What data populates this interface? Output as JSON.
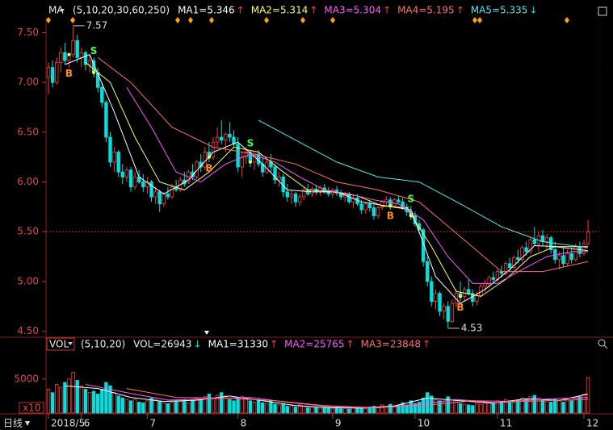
{
  "period": "日线",
  "chart_data": [
    {
      "type": "candlestick",
      "selector": "MA",
      "params": "(5,10,20,30,60,250)",
      "ylim": [
        4.44,
        7.65
      ],
      "yticks": [
        {
          "value": 7.5,
          "label": "7.50"
        },
        {
          "value": 7.0,
          "label": "7.00"
        },
        {
          "value": 6.5,
          "label": "6.50"
        },
        {
          "value": 6.0,
          "label": "6.00"
        },
        {
          "value": 5.5,
          "label": "5.50"
        },
        {
          "value": 5.0,
          "label": "5.00"
        },
        {
          "value": 4.5,
          "label": "4.50"
        }
      ],
      "price_line": 5.5,
      "up_color": "#ff3c3c",
      "down_color": "#00e0e0",
      "xticks": [
        {
          "value": 0,
          "label": "2018/5"
        },
        {
          "value": 8,
          "label": "6"
        },
        {
          "value": 24,
          "label": "7"
        },
        {
          "value": 46,
          "label": "8"
        },
        {
          "value": 69,
          "label": "9"
        },
        {
          "value": 89,
          "label": "10"
        },
        {
          "value": 109,
          "label": "11"
        },
        {
          "value": 130,
          "label": "12"
        }
      ],
      "open": [
        7.05,
        7.15,
        7.0,
        7.2,
        7.3,
        7.22,
        7.28,
        7.42,
        7.25,
        7.3,
        7.18,
        7.22,
        7.1,
        6.95,
        6.8,
        6.45,
        6.2,
        6.3,
        6.1,
        6.05,
        6.12,
        5.95,
        6.05,
        6.0,
        5.95,
        6.0,
        5.85,
        5.9,
        5.78,
        5.88,
        5.85,
        5.95,
        5.92,
        6.02,
        6.0,
        6.1,
        6.05,
        6.2,
        6.15,
        6.3,
        6.25,
        6.4,
        6.45,
        6.42,
        6.48,
        6.45,
        6.38,
        6.15,
        6.25,
        6.3,
        6.2,
        6.28,
        6.18,
        6.1,
        6.2,
        6.15,
        6.02,
        6.05,
        5.9,
        5.85,
        5.88,
        5.8,
        5.85,
        5.92,
        5.88,
        5.93,
        5.9,
        5.94,
        5.91,
        5.88,
        5.92,
        5.89,
        5.85,
        5.88,
        5.8,
        5.84,
        5.78,
        5.72,
        5.78,
        5.74,
        5.66,
        5.74,
        5.8,
        5.82,
        5.76,
        5.82,
        5.8,
        5.75,
        5.7,
        5.66,
        5.58,
        5.52,
        5.2,
        5.0,
        4.8,
        4.88,
        4.7,
        4.75,
        4.6,
        4.78,
        4.88,
        4.85,
        4.92,
        4.88,
        4.8,
        4.86,
        4.95,
        4.98,
        5.04,
        5.02,
        5.1,
        5.08,
        5.18,
        5.14,
        5.24,
        5.22,
        5.34,
        5.3,
        5.42,
        5.38,
        5.46,
        5.4,
        5.44,
        5.32,
        5.22,
        5.26,
        5.18,
        5.28,
        5.22,
        5.35,
        5.28,
        5.38
      ],
      "high": [
        7.2,
        7.22,
        7.25,
        7.35,
        7.4,
        7.3,
        7.57,
        7.48,
        7.35,
        7.32,
        7.28,
        7.25,
        7.15,
        7.0,
        6.82,
        6.5,
        6.35,
        6.32,
        6.18,
        6.15,
        6.15,
        6.1,
        6.12,
        6.08,
        6.05,
        6.02,
        5.95,
        5.92,
        5.9,
        5.95,
        5.98,
        6.02,
        6.05,
        6.1,
        6.12,
        6.18,
        6.22,
        6.28,
        6.35,
        6.4,
        6.45,
        6.55,
        6.62,
        6.5,
        6.6,
        6.52,
        6.45,
        6.3,
        6.35,
        6.32,
        6.3,
        6.32,
        6.25,
        6.22,
        6.28,
        6.18,
        6.1,
        6.08,
        5.98,
        5.92,
        5.9,
        5.88,
        5.95,
        5.98,
        5.95,
        5.97,
        5.96,
        5.98,
        5.95,
        5.94,
        5.96,
        5.92,
        5.9,
        5.9,
        5.86,
        5.88,
        5.82,
        5.8,
        5.82,
        5.78,
        5.76,
        5.82,
        5.86,
        5.85,
        5.84,
        5.86,
        5.84,
        5.78,
        5.76,
        5.7,
        5.62,
        5.54,
        5.25,
        5.05,
        4.92,
        4.9,
        4.78,
        4.8,
        4.82,
        4.92,
        5.0,
        4.95,
        5.02,
        4.92,
        4.9,
        4.98,
        5.02,
        5.06,
        5.1,
        5.12,
        5.16,
        5.2,
        5.24,
        5.26,
        5.32,
        5.36,
        5.4,
        5.44,
        5.55,
        5.5,
        5.52,
        5.48,
        5.46,
        5.4,
        5.3,
        5.34,
        5.32,
        5.34,
        5.38,
        5.4,
        5.42,
        5.62
      ],
      "low": [
        6.88,
        6.95,
        6.98,
        7.1,
        7.18,
        7.15,
        7.25,
        7.2,
        7.15,
        7.12,
        7.1,
        7.05,
        6.9,
        6.75,
        6.4,
        6.15,
        6.1,
        6.05,
        5.98,
        6.0,
        5.9,
        5.92,
        5.98,
        5.9,
        5.88,
        5.8,
        5.78,
        5.7,
        5.75,
        5.82,
        5.83,
        5.9,
        5.9,
        5.95,
        5.98,
        6.02,
        6.03,
        6.1,
        6.12,
        6.2,
        6.22,
        6.35,
        6.38,
        6.3,
        6.4,
        6.35,
        6.1,
        6.05,
        6.18,
        6.15,
        6.12,
        6.15,
        6.05,
        6.08,
        6.1,
        5.98,
        5.95,
        5.85,
        5.8,
        5.78,
        5.75,
        5.76,
        5.82,
        5.86,
        5.85,
        5.87,
        5.86,
        5.88,
        5.85,
        5.84,
        5.86,
        5.82,
        5.8,
        5.78,
        5.74,
        5.76,
        5.68,
        5.68,
        5.7,
        5.62,
        5.63,
        5.72,
        5.76,
        5.72,
        5.74,
        5.78,
        5.72,
        5.66,
        5.62,
        5.55,
        5.48,
        5.15,
        4.95,
        4.75,
        4.72,
        4.65,
        4.62,
        4.53,
        4.58,
        4.74,
        4.8,
        4.8,
        4.86,
        4.75,
        4.76,
        4.84,
        4.9,
        4.94,
        4.98,
        5.0,
        5.04,
        5.06,
        5.1,
        5.12,
        5.18,
        5.2,
        5.26,
        5.28,
        5.36,
        5.3,
        5.36,
        5.32,
        5.28,
        5.18,
        5.12,
        5.14,
        5.15,
        5.18,
        5.2,
        5.24,
        5.26,
        5.36
      ],
      "close": [
        7.15,
        7.0,
        7.2,
        7.3,
        7.22,
        7.28,
        7.42,
        7.25,
        7.3,
        7.18,
        7.22,
        7.1,
        6.95,
        6.8,
        6.45,
        6.2,
        6.3,
        6.1,
        6.05,
        6.12,
        5.95,
        6.05,
        6.0,
        5.95,
        6.0,
        5.85,
        5.9,
        5.78,
        5.88,
        5.85,
        5.95,
        5.92,
        6.02,
        5.98,
        6.1,
        6.05,
        6.2,
        6.15,
        6.3,
        6.25,
        6.4,
        6.45,
        6.42,
        6.48,
        6.45,
        6.38,
        6.15,
        6.25,
        6.3,
        6.2,
        6.28,
        6.18,
        6.1,
        6.2,
        6.15,
        6.02,
        6.05,
        5.9,
        5.85,
        5.88,
        5.8,
        5.85,
        5.92,
        5.88,
        5.93,
        5.9,
        5.94,
        5.91,
        5.88,
        5.92,
        5.89,
        5.85,
        5.88,
        5.8,
        5.84,
        5.78,
        5.72,
        5.78,
        5.74,
        5.66,
        5.74,
        5.8,
        5.82,
        5.76,
        5.82,
        5.8,
        5.75,
        5.7,
        5.66,
        5.58,
        5.52,
        5.2,
        5.0,
        4.8,
        4.88,
        4.7,
        4.75,
        4.6,
        4.78,
        4.88,
        4.85,
        4.92,
        4.88,
        4.8,
        4.86,
        4.95,
        4.98,
        5.04,
        5.02,
        5.1,
        5.08,
        5.18,
        5.14,
        5.24,
        5.22,
        5.34,
        5.3,
        5.42,
        5.38,
        5.46,
        5.4,
        5.44,
        5.32,
        5.22,
        5.26,
        5.18,
        5.28,
        5.22,
        5.35,
        5.28,
        5.38,
        5.5
      ],
      "series": [
        {
          "name": "MA1=5.346",
          "trend": "↑",
          "color": "#ffffff",
          "x": [
            4,
            10,
            16,
            22,
            28,
            34,
            40,
            46,
            52,
            58,
            64,
            70,
            76,
            82,
            88,
            94,
            100,
            106,
            112,
            118,
            124,
            131
          ],
          "values": [
            7.18,
            7.28,
            6.7,
            6.05,
            5.88,
            6.02,
            6.3,
            6.4,
            6.18,
            5.92,
            5.9,
            5.9,
            5.8,
            5.76,
            5.72,
            5.05,
            4.78,
            4.92,
            5.12,
            5.36,
            5.35,
            5.35
          ]
        },
        {
          "name": "MA2=5.314",
          "trend": "↑",
          "color": "#ffff55",
          "x": [
            9,
            15,
            21,
            27,
            33,
            39,
            45,
            51,
            57,
            63,
            69,
            75,
            81,
            87,
            93,
            99,
            105,
            111,
            117,
            123,
            131
          ],
          "values": [
            7.2,
            7.0,
            6.45,
            6.0,
            5.92,
            6.1,
            6.35,
            6.3,
            6.1,
            5.92,
            5.9,
            5.86,
            5.76,
            5.74,
            5.35,
            4.9,
            4.85,
            5.02,
            5.25,
            5.35,
            5.31
          ]
        },
        {
          "name": "MA3=5.304",
          "trend": "↑",
          "color": "#ff55ff",
          "x": [
            19,
            25,
            31,
            37,
            43,
            49,
            55,
            61,
            67,
            73,
            79,
            85,
            91,
            97,
            103,
            109,
            115,
            121,
            127,
            131
          ],
          "values": [
            6.95,
            6.55,
            6.1,
            6.0,
            6.18,
            6.28,
            6.2,
            6.05,
            5.92,
            5.88,
            5.82,
            5.78,
            5.62,
            5.25,
            4.98,
            4.98,
            5.12,
            5.25,
            5.3,
            5.3
          ]
        },
        {
          "name": "MA4=5.195",
          "trend": "↑",
          "color": "#ff6e6e",
          "x": [
            12,
            20,
            30,
            40,
            50,
            60,
            70,
            80,
            90,
            100,
            110,
            120,
            131
          ],
          "values": [
            7.25,
            7.0,
            6.55,
            6.35,
            6.28,
            6.18,
            6.0,
            5.92,
            5.8,
            5.45,
            5.1,
            5.1,
            5.2
          ]
        },
        {
          "name": "MA5=5.335",
          "trend": "↓",
          "color": "#4ee8f0",
          "x": [
            51,
            60,
            70,
            80,
            90,
            100,
            110,
            120,
            131
          ],
          "values": [
            6.62,
            6.42,
            6.2,
            6.05,
            6.0,
            5.78,
            5.55,
            5.4,
            5.34
          ]
        }
      ],
      "signals": [
        {
          "label": "B",
          "x": 5
        },
        {
          "label": "S",
          "x": 11
        },
        {
          "label": "B",
          "x": 39
        },
        {
          "label": "S",
          "x": 49
        },
        {
          "label": "B",
          "x": 83
        },
        {
          "label": "S",
          "x": 88
        },
        {
          "label": "B",
          "x": 100
        }
      ]
    },
    {
      "type": "bar",
      "selector": "VOL",
      "params": "(5,10,20)",
      "current_label": "VOL=26943",
      "current_trend": "↓",
      "unit_label": "x10",
      "ylim": [
        0,
        9000
      ],
      "yticks": [
        5000
      ],
      "values": [
        3500,
        3000,
        4200,
        3800,
        4500,
        5000,
        6000,
        4800,
        4000,
        3500,
        3000,
        3200,
        2800,
        3500,
        4500,
        4000,
        3000,
        2500,
        2200,
        2000,
        1800,
        2000,
        1600,
        1500,
        1800,
        2200,
        2000,
        1700,
        1500,
        1400,
        1600,
        1800,
        1700,
        2000,
        1500,
        1800,
        2200,
        2000,
        2400,
        2800,
        2200,
        2600,
        3000,
        2500,
        2000,
        1800,
        2200,
        2400,
        2000,
        1800,
        1600,
        2000,
        1500,
        1400,
        1800,
        1300,
        1200,
        1400,
        1000,
        1100,
        900,
        1200,
        1000,
        800,
        900,
        800,
        700,
        850,
        750,
        700,
        800,
        650,
        700,
        600,
        750,
        700,
        800,
        650,
        900,
        1000,
        850,
        1200,
        900,
        1300,
        1000,
        1100,
        1500,
        1200,
        1800,
        1400,
        1600,
        2200,
        3000,
        2500,
        2000,
        1800,
        1600,
        2400,
        2000,
        1800,
        1400,
        1300,
        1200,
        1100,
        1400,
        1300,
        1500,
        1600,
        1400,
        1800,
        1700,
        2000,
        1800,
        1600,
        1900,
        2200,
        2000,
        2400,
        2600,
        2200,
        2000,
        1800,
        1600,
        2000,
        1800,
        1600,
        2000,
        1800,
        2200,
        2400,
        2800,
        5200
      ],
      "series": [
        {
          "name": "MA1=31330",
          "trend": "↑",
          "color": "#ffffff",
          "x": [
            4,
            12,
            20,
            28,
            36,
            44,
            52,
            60,
            68,
            76,
            84,
            92,
            100,
            108,
            116,
            124,
            131
          ],
          "values": [
            4000,
            3600,
            2300,
            1700,
            1900,
            2500,
            1800,
            1100,
            800,
            720,
            1050,
            2200,
            1800,
            1450,
            2100,
            1850,
            2800
          ]
        },
        {
          "name": "MA2=25765",
          "trend": "↑",
          "color": "#ff55ff",
          "x": [
            9,
            19,
            29,
            39,
            49,
            59,
            69,
            79,
            89,
            99,
            109,
            119,
            131
          ],
          "values": [
            4200,
            3000,
            1900,
            2100,
            2300,
            1500,
            900,
            750,
            1200,
            2000,
            1500,
            2000,
            2300
          ]
        },
        {
          "name": "MA3=23848",
          "trend": "↑",
          "color": "#ff6e6e",
          "x": [
            19,
            31,
            43,
            55,
            67,
            79,
            91,
            103,
            115,
            131
          ],
          "values": [
            3600,
            2300,
            2200,
            1800,
            1100,
            800,
            1100,
            1800,
            1700,
            2000
          ]
        }
      ]
    }
  ]
}
